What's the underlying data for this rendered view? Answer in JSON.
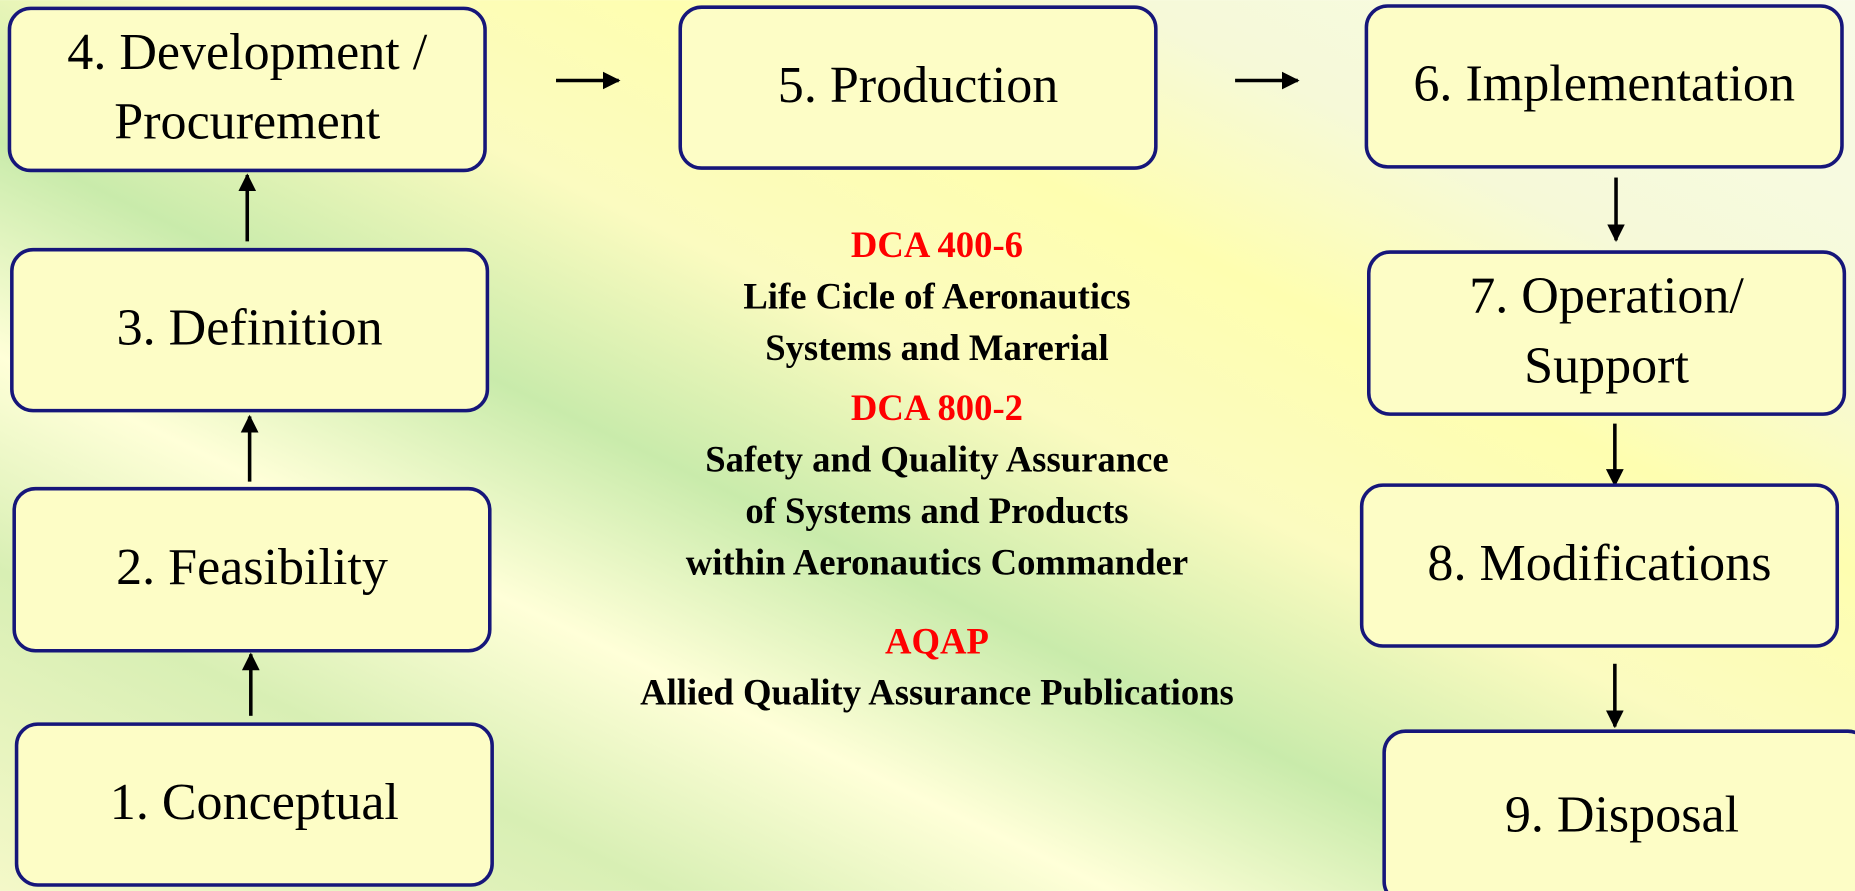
{
  "nodes": [
    {
      "lines": [
        "1. Conceptual"
      ]
    },
    {
      "lines": [
        "2. Feasibility"
      ]
    },
    {
      "lines": [
        "3. Definition"
      ]
    },
    {
      "lines": [
        "4. Development /",
        "Procurement"
      ]
    },
    {
      "lines": [
        "5. Production"
      ]
    },
    {
      "lines": [
        "6. Implementation"
      ]
    },
    {
      "lines": [
        "7. Operation/",
        "Support"
      ]
    },
    {
      "lines": [
        "8. Modifications"
      ]
    },
    {
      "lines": [
        "9. Disposal"
      ]
    }
  ],
  "notes": [
    {
      "title": "DCA 400-6",
      "lines": [
        "Life Cicle of Aeronautics",
        "Systems and Marerial"
      ]
    },
    {
      "title": "DCA 800-2",
      "lines": [
        "Safety and Quality Assurance",
        "of Systems and Products",
        "within Aeronautics Commander"
      ]
    },
    {
      "title": "AQAP",
      "lines": [
        "Allied Quality Assurance Publications"
      ]
    }
  ]
}
